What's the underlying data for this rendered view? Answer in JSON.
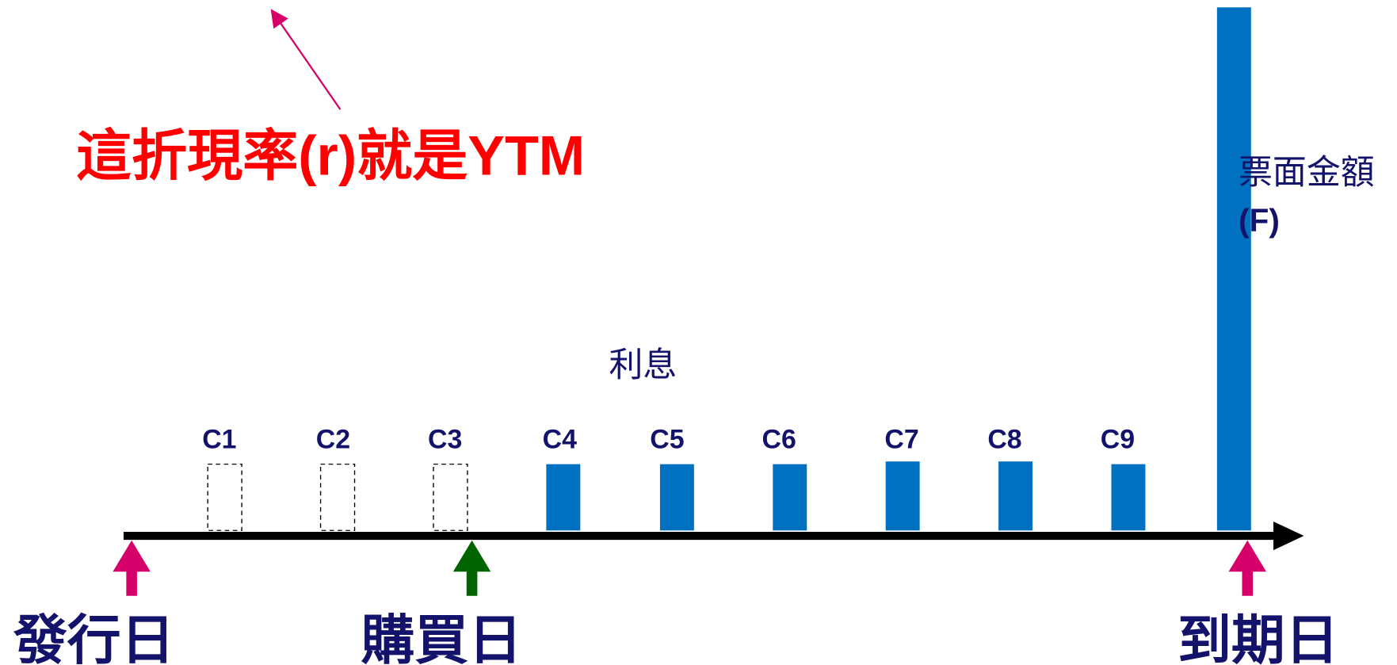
{
  "annotation": "這折現率(r)就是YTM",
  "face_value": {
    "label": "票面金額",
    "symbol": "(F)"
  },
  "interest_label": "利息",
  "coupons": [
    "C1",
    "C2",
    "C3",
    "C4",
    "C5",
    "C6",
    "C7",
    "C8",
    "C9"
  ],
  "dates": {
    "issue": "發行日",
    "purchase": "購買日",
    "maturity": "到期日"
  }
}
